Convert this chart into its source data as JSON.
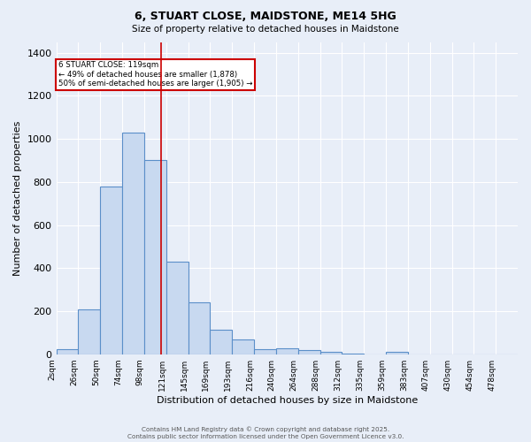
{
  "title1": "6, STUART CLOSE, MAIDSTONE, ME14 5HG",
  "title2": "Size of property relative to detached houses in Maidstone",
  "xlabel": "Distribution of detached houses by size in Maidstone",
  "ylabel": "Number of detached properties",
  "bar_labels": [
    "2sqm",
    "26sqm",
    "50sqm",
    "74sqm",
    "98sqm",
    "121sqm",
    "145sqm",
    "169sqm",
    "193sqm",
    "216sqm",
    "240sqm",
    "264sqm",
    "288sqm",
    "312sqm",
    "335sqm",
    "359sqm",
    "383sqm",
    "407sqm",
    "430sqm",
    "454sqm",
    "478sqm"
  ],
  "bar_values": [
    22,
    210,
    780,
    1030,
    900,
    430,
    240,
    115,
    70,
    25,
    28,
    18,
    10,
    2,
    0,
    12,
    0,
    0,
    0,
    0,
    0
  ],
  "bar_color": "#c8d9f0",
  "bar_edge_color": "#5b8fc9",
  "background_color": "#e8eef8",
  "grid_color": "#ffffff",
  "vline_color": "#cc0000",
  "annotation_text": "6 STUART CLOSE: 119sqm\n← 49% of detached houses are smaller (1,878)\n50% of semi-detached houses are larger (1,905) →",
  "annotation_box_color": "#ffffff",
  "annotation_box_edge": "#cc0000",
  "annotation_text_color": "#000000",
  "footer1": "Contains HM Land Registry data © Crown copyright and database right 2025.",
  "footer2": "Contains public sector information licensed under the Open Government Licence v3.0.",
  "ylim": [
    0,
    1450
  ],
  "vline_pos": 4.78
}
